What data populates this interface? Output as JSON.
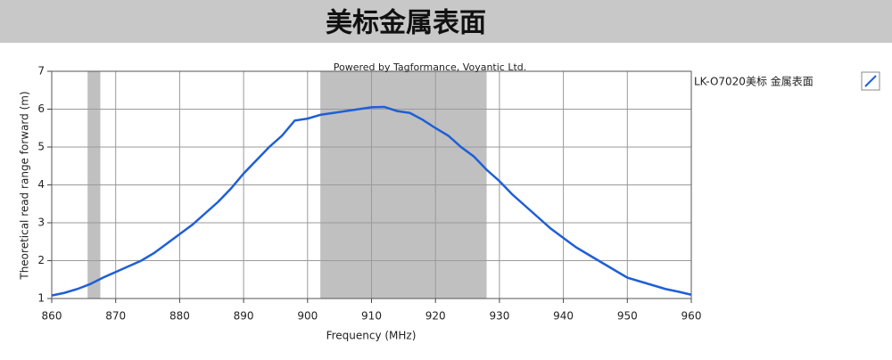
{
  "chart_data": {
    "type": "line",
    "title": "美标金属表面",
    "annotation": "Powered by Tagformance, Voyantic Ltd.",
    "x_label": "Frequency (MHz)",
    "y_label": "Theoretical read range forward (m)",
    "x": [
      860,
      862,
      864,
      866,
      868,
      870,
      872,
      874,
      876,
      878,
      880,
      882,
      884,
      886,
      888,
      890,
      892,
      894,
      896,
      898,
      900,
      902,
      904,
      906,
      908,
      910,
      912,
      914,
      916,
      918,
      920,
      922,
      924,
      926,
      928,
      930,
      932,
      934,
      936,
      938,
      940,
      942,
      944,
      946,
      948,
      950,
      952,
      954,
      956,
      958,
      960
    ],
    "series": [
      {
        "name": "LK-O7020美标 金属表面",
        "color": "#1f5fd6",
        "values": [
          1.08,
          1.15,
          1.25,
          1.38,
          1.55,
          1.7,
          1.85,
          2.0,
          2.2,
          2.45,
          2.7,
          2.95,
          3.25,
          3.55,
          3.9,
          4.3,
          4.65,
          5.0,
          5.3,
          5.7,
          5.75,
          5.85,
          5.9,
          5.95,
          6.0,
          6.05,
          6.06,
          5.95,
          5.9,
          5.72,
          5.5,
          5.3,
          5.0,
          4.75,
          4.4,
          4.1,
          3.75,
          3.45,
          3.15,
          2.85,
          2.6,
          2.35,
          2.15,
          1.95,
          1.75,
          1.55,
          1.45,
          1.35,
          1.25,
          1.18,
          1.1
        ]
      }
    ],
    "bands": [
      [
        865.6,
        867.6
      ],
      [
        902,
        928
      ]
    ],
    "band_color": "#c0c0c0",
    "xlim": [
      860,
      960
    ],
    "xticks": [
      860,
      870,
      880,
      890,
      900,
      910,
      920,
      930,
      940,
      950,
      960
    ],
    "ylim": [
      1,
      7
    ],
    "yticks": [
      1,
      2,
      3,
      4,
      5,
      6,
      7
    ],
    "grid": true
  }
}
